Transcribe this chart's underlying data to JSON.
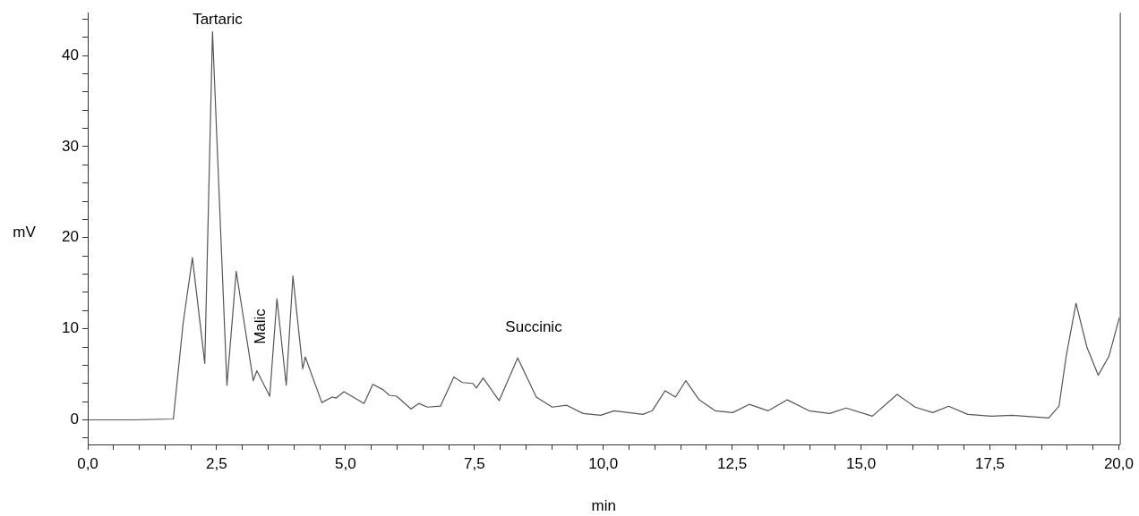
{
  "chart_data": {
    "type": "line",
    "xlabel": "min",
    "ylabel": "mV",
    "series": [
      {
        "color": "#555555",
        "x": [
          0,
          0.89,
          1.66,
          1.85,
          2.03,
          2.27,
          2.42,
          2.7,
          2.88,
          3.21,
          3.28,
          3.53,
          3.67,
          3.85,
          3.98,
          4.17,
          4.22,
          4.54,
          4.74,
          4.82,
          4.97,
          5.36,
          5.53,
          5.73,
          5.85,
          5.99,
          6.27,
          6.42,
          6.59,
          6.84,
          7.1,
          7.27,
          7.47,
          7.54,
          7.67,
          7.98,
          8.34,
          8.7,
          9.01,
          9.29,
          9.61,
          9.95,
          10.21,
          10.77,
          10.95,
          11.2,
          11.4,
          11.6,
          11.86,
          12.17,
          12.51,
          12.83,
          13.2,
          13.57,
          13.99,
          14.39,
          14.71,
          15.22,
          15.7,
          16.05,
          16.39,
          16.7,
          17.07,
          17.53,
          17.93,
          18.64,
          18.84,
          18.98,
          19.17,
          19.38,
          19.6,
          19.81,
          20.01
        ],
        "values": [
          0,
          0,
          0.1,
          10.6,
          17.8,
          6.2,
          42.6,
          3.8,
          16.3,
          4.3,
          5.4,
          2.6,
          13.3,
          3.8,
          15.8,
          5.6,
          6.9,
          1.9,
          2.5,
          2.4,
          3.1,
          1.8,
          3.9,
          3.3,
          2.7,
          2.6,
          1.2,
          1.8,
          1.4,
          1.5,
          4.7,
          4.1,
          4.0,
          3.5,
          4.6,
          2.1,
          6.8,
          2.5,
          1.4,
          1.6,
          0.7,
          0.5,
          1.0,
          0.6,
          1.0,
          3.2,
          2.5,
          4.3,
          2.2,
          1.0,
          0.8,
          1.7,
          1.0,
          2.2,
          1.0,
          0.7,
          1.3,
          0.4,
          2.8,
          1.4,
          0.8,
          1.5,
          0.6,
          0.4,
          0.5,
          0.2,
          1.5,
          7.0,
          12.8,
          8.0,
          4.9,
          7.0,
          11.2
        ]
      }
    ],
    "xlim": [
      0,
      20.02
    ],
    "xticks": [
      {
        "value": 0,
        "label": "0,0"
      },
      {
        "value": 0.5,
        "label": null
      },
      {
        "value": 1,
        "label": null
      },
      {
        "value": 1.5,
        "label": null
      },
      {
        "value": 2,
        "label": null
      },
      {
        "value": 2.5,
        "label": "2,5"
      },
      {
        "value": 3,
        "label": null
      },
      {
        "value": 3.5,
        "label": null
      },
      {
        "value": 4,
        "label": null
      },
      {
        "value": 4.5,
        "label": null
      },
      {
        "value": 5,
        "label": "5,0"
      },
      {
        "value": 5.5,
        "label": null
      },
      {
        "value": 6,
        "label": null
      },
      {
        "value": 6.5,
        "label": null
      },
      {
        "value": 7,
        "label": null
      },
      {
        "value": 7.5,
        "label": "7,5"
      },
      {
        "value": 8,
        "label": null
      },
      {
        "value": 8.5,
        "label": null
      },
      {
        "value": 9,
        "label": null
      },
      {
        "value": 9.5,
        "label": null
      },
      {
        "value": 10,
        "label": "10,0"
      },
      {
        "value": 10.5,
        "label": null
      },
      {
        "value": 11,
        "label": null
      },
      {
        "value": 11.5,
        "label": null
      },
      {
        "value": 12,
        "label": null
      },
      {
        "value": 12.5,
        "label": "12,5"
      },
      {
        "value": 13,
        "label": null
      },
      {
        "value": 13.5,
        "label": null
      },
      {
        "value": 14,
        "label": null
      },
      {
        "value": 14.5,
        "label": null
      },
      {
        "value": 15,
        "label": "15,0"
      },
      {
        "value": 15.5,
        "label": null
      },
      {
        "value": 16,
        "label": null
      },
      {
        "value": 16.5,
        "label": null
      },
      {
        "value": 17,
        "label": null
      },
      {
        "value": 17.5,
        "label": "17,5"
      },
      {
        "value": 18,
        "label": null
      },
      {
        "value": 18.5,
        "label": null
      },
      {
        "value": 19,
        "label": null
      },
      {
        "value": 19.5,
        "label": null
      },
      {
        "value": 20,
        "label": "20,0"
      }
    ],
    "ylim": [
      -2.7,
      44.7
    ],
    "yticks": [
      {
        "value": -2,
        "label": null
      },
      0,
      {
        "value": 2,
        "label": null
      },
      {
        "value": 4,
        "label": null
      },
      {
        "value": 6,
        "label": null
      },
      {
        "value": 8,
        "label": null
      },
      10,
      {
        "value": 12,
        "label": null
      },
      {
        "value": 14,
        "label": null
      },
      {
        "value": 16,
        "label": null
      },
      {
        "value": 18,
        "label": null
      },
      20,
      {
        "value": 22,
        "label": null
      },
      {
        "value": 24,
        "label": null
      },
      {
        "value": 26,
        "label": null
      },
      {
        "value": 28,
        "label": null
      },
      30,
      {
        "value": 32,
        "label": null
      },
      {
        "value": 34,
        "label": null
      },
      {
        "value": 36,
        "label": null
      },
      {
        "value": 38,
        "label": null
      },
      40,
      {
        "value": 42,
        "label": null
      },
      {
        "value": 44,
        "label": null
      }
    ],
    "grid": false,
    "legend": false,
    "marker": "none",
    "line_style": "solid",
    "annotations": [
      "Tartaric",
      "Malic",
      "Succinic"
    ]
  }
}
